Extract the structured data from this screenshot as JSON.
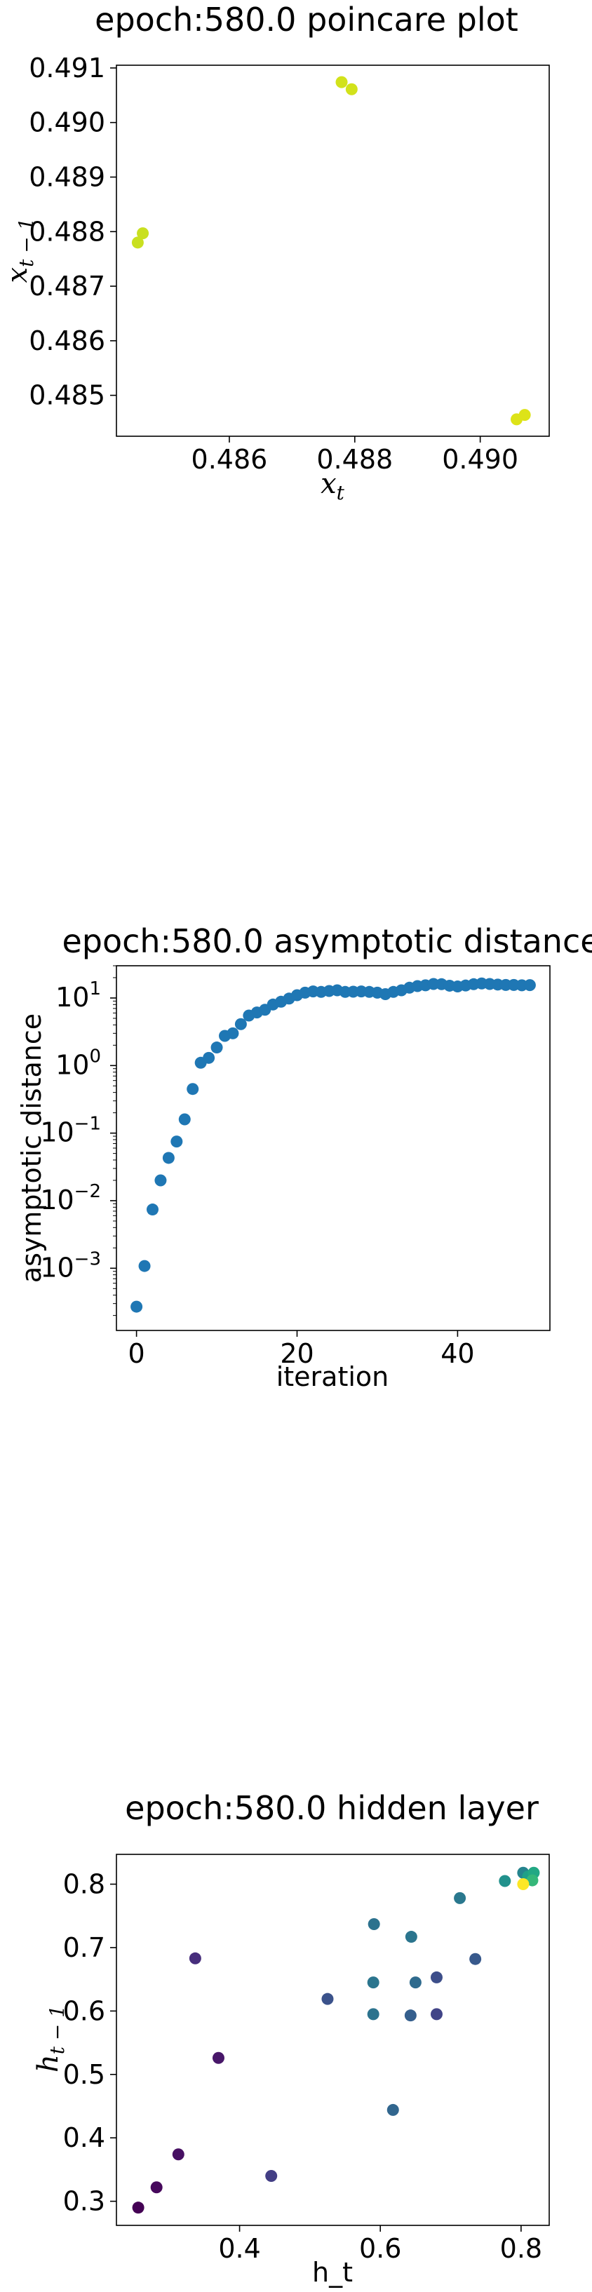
{
  "chart_data": [
    {
      "type": "scatter",
      "title": "epoch:580.0 poincare plot",
      "xlabel": "x_t",
      "ylabel": "x_{t-1}",
      "xticks": [
        "0.486",
        "0.488",
        "0.490"
      ],
      "yticks": [
        "0.485",
        "0.486",
        "0.487",
        "0.488",
        "0.489",
        "0.490",
        "0.491"
      ],
      "xlim": [
        0.4842,
        0.4911
      ],
      "ylim": [
        0.48425,
        0.49105
      ],
      "grid": false,
      "points": [
        {
          "x": 0.48454,
          "y": 0.4878,
          "color": "#c9e020"
        },
        {
          "x": 0.48462,
          "y": 0.48797,
          "color": "#c9e020"
        },
        {
          "x": 0.48779,
          "y": 0.49074,
          "color": "#d2e21b"
        },
        {
          "x": 0.48795,
          "y": 0.49061,
          "color": "#d2e21b"
        },
        {
          "x": 0.49058,
          "y": 0.48456,
          "color": "#dde318"
        },
        {
          "x": 0.49071,
          "y": 0.48464,
          "color": "#dde318"
        }
      ]
    },
    {
      "type": "scatter",
      "title": "epoch:580.0 asymptotic distance",
      "xlabel": "iteration",
      "ylabel": "asymptotic distance",
      "yscale": "log",
      "xticks": [
        "0",
        "20",
        "40"
      ],
      "yticks": [
        "10^-3",
        "10^-2",
        "10^-1",
        "10^0",
        "10^1"
      ],
      "xlim": [
        -2.5,
        51.5
      ],
      "ylim": [
        0.00012,
        30
      ],
      "grid": false,
      "color": "#1f77b4",
      "x": [
        0,
        1,
        2,
        3,
        4,
        5,
        6,
        7,
        8,
        9,
        10,
        11,
        12,
        13,
        14,
        15,
        16,
        17,
        18,
        19,
        20,
        21,
        22,
        23,
        24,
        25,
        26,
        27,
        28,
        29,
        30,
        31,
        32,
        33,
        34,
        35,
        36,
        37,
        38,
        39,
        40,
        41,
        42,
        43,
        44,
        45,
        46,
        47,
        48,
        49
      ],
      "y": [
        0.00027,
        0.00108,
        0.0074,
        0.02,
        0.043,
        0.075,
        0.16,
        0.45,
        1.1,
        1.3,
        1.85,
        2.75,
        3.0,
        4.1,
        5.5,
        6.1,
        6.7,
        8.0,
        8.8,
        9.8,
        11.0,
        12.0,
        12.5,
        12.3,
        12.7,
        13.0,
        12.3,
        12.4,
        12.5,
        12.3,
        12.0,
        11.4,
        12.3,
        13.0,
        14.2,
        15.0,
        15.4,
        16.1,
        16.0,
        15.2,
        14.8,
        15.3,
        16.0,
        16.4,
        16.1,
        15.8,
        15.6,
        15.6,
        15.4,
        15.5
      ]
    },
    {
      "type": "scatter",
      "title": "epoch:580.0 hidden layer",
      "xlabel": "h_t",
      "ylabel": "h_{t-1}",
      "xticks": [
        "0.4",
        "0.6",
        "0.8"
      ],
      "yticks": [
        "0.3",
        "0.4",
        "0.5",
        "0.6",
        "0.7",
        "0.8"
      ],
      "xlim": [
        0.225,
        0.84
      ],
      "ylim": [
        0.262,
        0.847
      ],
      "grid": false,
      "points": [
        {
          "x": 0.256,
          "y": 0.29,
          "color": "#440154"
        },
        {
          "x": 0.282,
          "y": 0.322,
          "color": "#46085c"
        },
        {
          "x": 0.313,
          "y": 0.374,
          "color": "#471063"
        },
        {
          "x": 0.37,
          "y": 0.526,
          "color": "#481769"
        },
        {
          "x": 0.337,
          "y": 0.683,
          "color": "#472e7c"
        },
        {
          "x": 0.445,
          "y": 0.34,
          "color": "#433e85"
        },
        {
          "x": 0.525,
          "y": 0.619,
          "color": "#3b528b"
        },
        {
          "x": 0.618,
          "y": 0.444,
          "color": "#31668e"
        },
        {
          "x": 0.591,
          "y": 0.737,
          "color": "#2c728e"
        },
        {
          "x": 0.59,
          "y": 0.645,
          "color": "#2b758e"
        },
        {
          "x": 0.59,
          "y": 0.595,
          "color": "#2c738e"
        },
        {
          "x": 0.644,
          "y": 0.717,
          "color": "#2b758e"
        },
        {
          "x": 0.65,
          "y": 0.645,
          "color": "#2f6b8e"
        },
        {
          "x": 0.643,
          "y": 0.593,
          "color": "#355f8d"
        },
        {
          "x": 0.68,
          "y": 0.653,
          "color": "#3d4e8a"
        },
        {
          "x": 0.68,
          "y": 0.595,
          "color": "#414487"
        },
        {
          "x": 0.713,
          "y": 0.778,
          "color": "#2a788e"
        },
        {
          "x": 0.735,
          "y": 0.682,
          "color": "#38598c"
        },
        {
          "x": 0.777,
          "y": 0.805,
          "color": "#21918c"
        },
        {
          "x": 0.803,
          "y": 0.818,
          "color": "#25848e"
        },
        {
          "x": 0.81,
          "y": 0.812,
          "color": "#1fa088"
        },
        {
          "x": 0.818,
          "y": 0.818,
          "color": "#22a884"
        },
        {
          "x": 0.816,
          "y": 0.806,
          "color": "#35b779"
        },
        {
          "x": 0.803,
          "y": 0.8,
          "color": "#fde725"
        }
      ]
    }
  ]
}
